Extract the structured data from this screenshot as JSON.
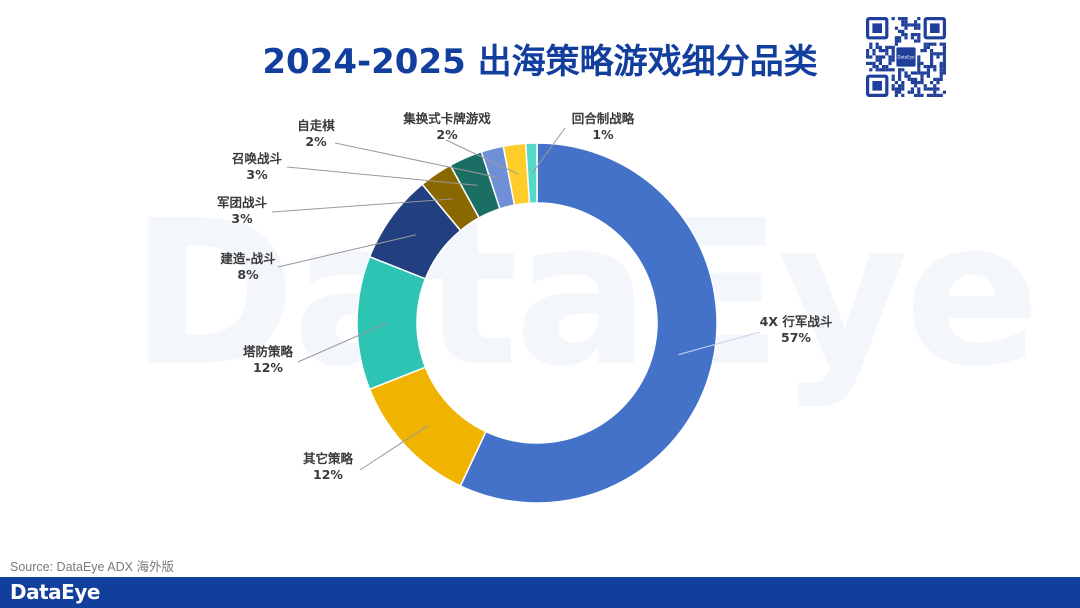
{
  "header": {
    "title": "2024-2025 出海策略游戏细分品类"
  },
  "watermark": {
    "text": "DataEye"
  },
  "qr": {
    "center_text": "DataEye"
  },
  "footer": {
    "source": "Source: DataEye ADX 海外版",
    "logo": "DataEye"
  },
  "chart_data": {
    "type": "pie",
    "variant": "donut",
    "title": "2024-2025 出海策略游戏细分品类",
    "categories": [
      "4X 行军战斗",
      "其它策略",
      "塔防策略",
      "建造-战斗",
      "军团战斗",
      "召唤战斗",
      "自走棋",
      "集换式卡牌游戏",
      "回合制战略"
    ],
    "values": [
      57,
      12,
      12,
      8,
      3,
      3,
      2,
      2,
      1
    ],
    "labels": [
      "57%",
      "12%",
      "12%",
      "8%",
      "3%",
      "3%",
      "2%",
      "2%",
      "1%"
    ],
    "colors": [
      "#4472c9",
      "#f0b400",
      "#2ec4b3",
      "#223f80",
      "#8a6800",
      "#1b6e64",
      "#6f8fd6",
      "#ffcc2a",
      "#55d9c8"
    ],
    "start_angle_deg": 0,
    "direction": "clockwise",
    "legend": "none",
    "label_placement": "outside-with-leader-lines"
  }
}
